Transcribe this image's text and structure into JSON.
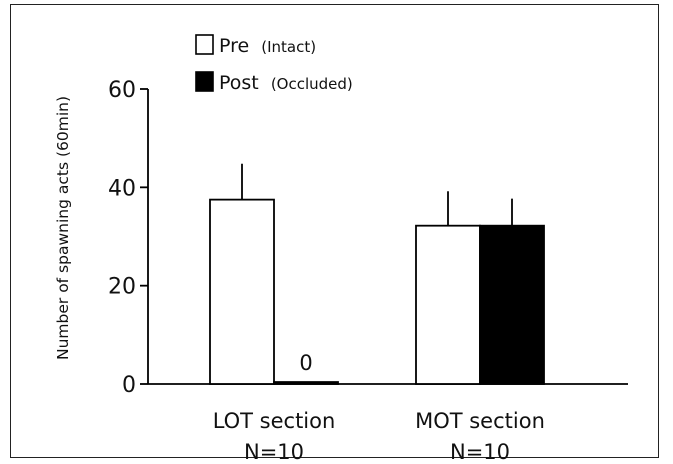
{
  "chart_data": {
    "type": "bar",
    "title": "",
    "ylabel": "Number of spawning acts (60min)",
    "ylim": [
      0,
      60
    ],
    "yticks": [
      0,
      20,
      40,
      60
    ],
    "categories": [
      {
        "label": "LOT section",
        "sublabel": "N=10"
      },
      {
        "label": "MOT section",
        "sublabel": "N=10"
      }
    ],
    "series": [
      {
        "name": "Pre",
        "name_note": "(Intact)",
        "color": "#ffffff",
        "values": [
          37.5,
          32.2
        ],
        "errors": [
          7.3,
          7.0
        ]
      },
      {
        "name": "Post",
        "name_note": "(Occluded)",
        "color": "#000000",
        "values": [
          0.4,
          32.2
        ],
        "errors": [
          0,
          5.5
        ]
      }
    ],
    "data_labels": [
      {
        "series": 1,
        "category": 0,
        "text": "0"
      }
    ],
    "legend": "top-left",
    "grid": false
  }
}
